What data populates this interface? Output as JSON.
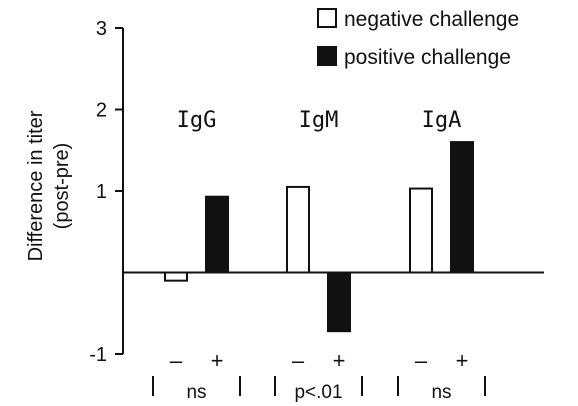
{
  "chart_data": {
    "type": "bar",
    "ylabel": "Difference in titer\n(post-pre)",
    "ylim": [
      -1,
      3
    ],
    "yticks": [
      {
        "value": 3,
        "label": "3"
      },
      {
        "value": 2,
        "label": "2"
      },
      {
        "value": 1,
        "label": "1"
      },
      {
        "value": -1,
        "label": "-1"
      }
    ],
    "legend": {
      "placement": "top-right",
      "entries": [
        {
          "label": "negative challenge",
          "style": "open"
        },
        {
          "label": "positive challenge",
          "style": "filled"
        }
      ]
    },
    "groups": [
      {
        "name": "IgG",
        "negative": -0.1,
        "positive": 0.93,
        "significance": "ns"
      },
      {
        "name": "IgM",
        "negative": 1.05,
        "positive": -0.72,
        "significance": "p<.01"
      },
      {
        "name": "IgA",
        "negative": 1.03,
        "positive": 1.6,
        "significance": "ns"
      }
    ],
    "sign_labels": {
      "negative": "–",
      "positive": "+"
    },
    "colors": {
      "negative_fill": "#ffffff",
      "positive_fill": "#111111",
      "stroke": "#111111"
    }
  }
}
